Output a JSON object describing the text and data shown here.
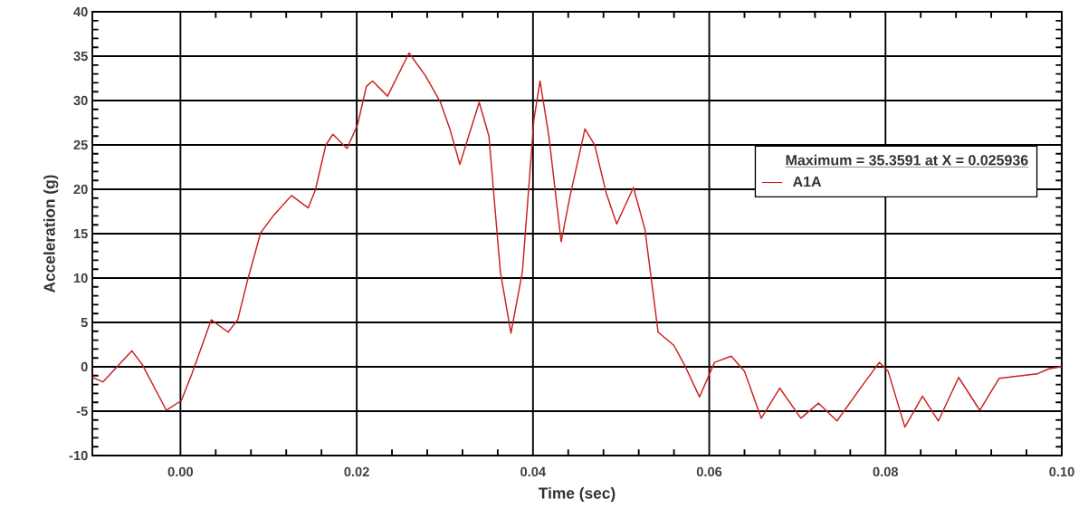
{
  "chart_data": {
    "type": "line",
    "xlabel": "Time (sec)",
    "ylabel": "Acceleration (g)",
    "legend_title": "Maximum = 35.3591 at X = 0.025936",
    "xlim": [
      -0.01,
      0.1
    ],
    "ylim": [
      -10,
      40
    ],
    "xticks": [
      {
        "value": 0,
        "label": "0.00"
      },
      {
        "value": 0.02,
        "label": "0.02"
      },
      {
        "value": 0.04,
        "label": "0.04"
      },
      {
        "value": 0.06,
        "label": "0.06"
      },
      {
        "value": 0.08,
        "label": "0.08"
      },
      {
        "value": 0.1,
        "label": "0.10"
      }
    ],
    "yticks": [
      -10,
      -5,
      0,
      5,
      10,
      15,
      20,
      25,
      30,
      35,
      40
    ],
    "grid": true,
    "legend": "right",
    "marker": "none",
    "line_style": "solid",
    "series": [
      {
        "name": "A1A",
        "color": "#cc2020",
        "x": [
          -0.01,
          -0.0088,
          -0.0055,
          -0.0043,
          -0.0016,
          0.0001,
          0.0013,
          0.0035,
          0.0054,
          0.0065,
          0.0076,
          0.0091,
          0.0106,
          0.0126,
          0.0145,
          0.0153,
          0.0165,
          0.0173,
          0.0189,
          0.0201,
          0.0211,
          0.0218,
          0.0235,
          0.025936,
          0.0278,
          0.0295,
          0.0306,
          0.0317,
          0.0327,
          0.0339,
          0.035,
          0.0363,
          0.0375,
          0.0388,
          0.0401,
          0.0408,
          0.0418,
          0.0432,
          0.0442,
          0.0459,
          0.047,
          0.0483,
          0.0495,
          0.0514,
          0.0527,
          0.0542,
          0.056,
          0.0572,
          0.0589,
          0.0606,
          0.0625,
          0.064,
          0.0659,
          0.068,
          0.0704,
          0.0724,
          0.0745,
          0.0773,
          0.0793,
          0.0803,
          0.0822,
          0.0842,
          0.086,
          0.0883,
          0.0907,
          0.0929,
          0.0955,
          0.0972,
          0.0986,
          0.1
        ],
        "values": [
          -1.2,
          -1.7,
          1.8,
          0.2,
          -4.9,
          -3.8,
          -0.8,
          5.3,
          3.9,
          5.3,
          9.7,
          15.1,
          17.1,
          19.3,
          17.9,
          19.9,
          25,
          26.2,
          24.6,
          27.3,
          31.6,
          32.2,
          30.5,
          35.3591,
          32.8,
          29.8,
          26.7,
          22.8,
          26,
          29.8,
          26,
          10.7,
          3.8,
          10.7,
          27.8,
          32.2,
          26,
          14.1,
          19.2,
          26.8,
          25,
          19.6,
          16.1,
          20.2,
          15.5,
          3.9,
          2.4,
          0.2,
          -3.4,
          0.5,
          1.2,
          -0.5,
          -5.8,
          -2.4,
          -5.8,
          -4.1,
          -6.1,
          -2.2,
          0.5,
          -0.5,
          -6.8,
          -3.3,
          -6.1,
          -1.2,
          -4.9,
          -1.3,
          -1.0,
          -0.8,
          -0.2,
          0
        ]
      }
    ]
  }
}
